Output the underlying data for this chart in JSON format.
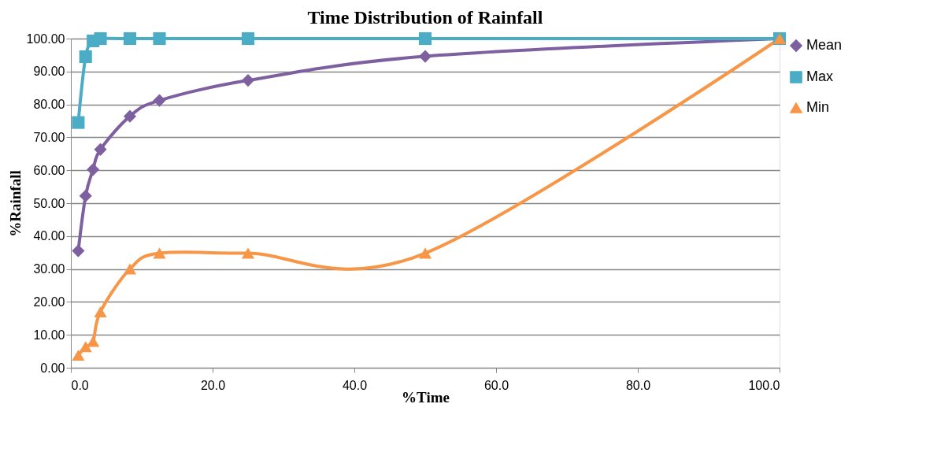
{
  "chart_data": {
    "type": "line",
    "title": "Time Distribution of Rainfall",
    "xlabel": "%Time",
    "ylabel": "%Rainfall",
    "x": [
      1.04,
      2.08,
      3.13,
      4.17,
      8.33,
      12.5,
      25,
      50,
      100
    ],
    "series": [
      {
        "name": "Mean",
        "color": "#7e60a0",
        "marker": "diamond",
        "values": [
          35.5,
          52.2,
          60.2,
          66.3,
          76.4,
          81.2,
          87.3,
          94.6,
          100
        ]
      },
      {
        "name": "Max",
        "color": "#4bacc6",
        "marker": "square",
        "values": [
          74.5,
          94.5,
          99.3,
          100,
          100,
          100,
          100,
          100,
          100
        ]
      },
      {
        "name": "Min",
        "color": "#f79646",
        "marker": "triangle",
        "values": [
          3.8,
          6.4,
          8,
          17,
          30,
          34.8,
          34.8,
          34.8,
          100
        ]
      }
    ],
    "xlim": [
      0,
      100
    ],
    "xticks": [
      {
        "value": 0,
        "label": "0.0"
      },
      {
        "value": 20,
        "label": "20.0"
      },
      {
        "value": 40,
        "label": "40.0"
      },
      {
        "value": 60,
        "label": "60.0"
      },
      {
        "value": 80,
        "label": "80.0"
      },
      {
        "value": 100,
        "label": "100.0"
      }
    ],
    "ylim": [
      0,
      100
    ],
    "yticks": [
      {
        "value": 0,
        "label": "0.00"
      },
      {
        "value": 10,
        "label": "10.00"
      },
      {
        "value": 20,
        "label": "20.00"
      },
      {
        "value": 30,
        "label": "30.00"
      },
      {
        "value": 40,
        "label": "40.00"
      },
      {
        "value": 50,
        "label": "50.00"
      },
      {
        "value": 60,
        "label": "60.00"
      },
      {
        "value": 70,
        "label": "70.00"
      },
      {
        "value": 80,
        "label": "80.00"
      },
      {
        "value": 90,
        "label": "90.00"
      },
      {
        "value": 100,
        "label": "100.00"
      }
    ],
    "grid": "y",
    "legend": "right",
    "line_style": "solid"
  }
}
